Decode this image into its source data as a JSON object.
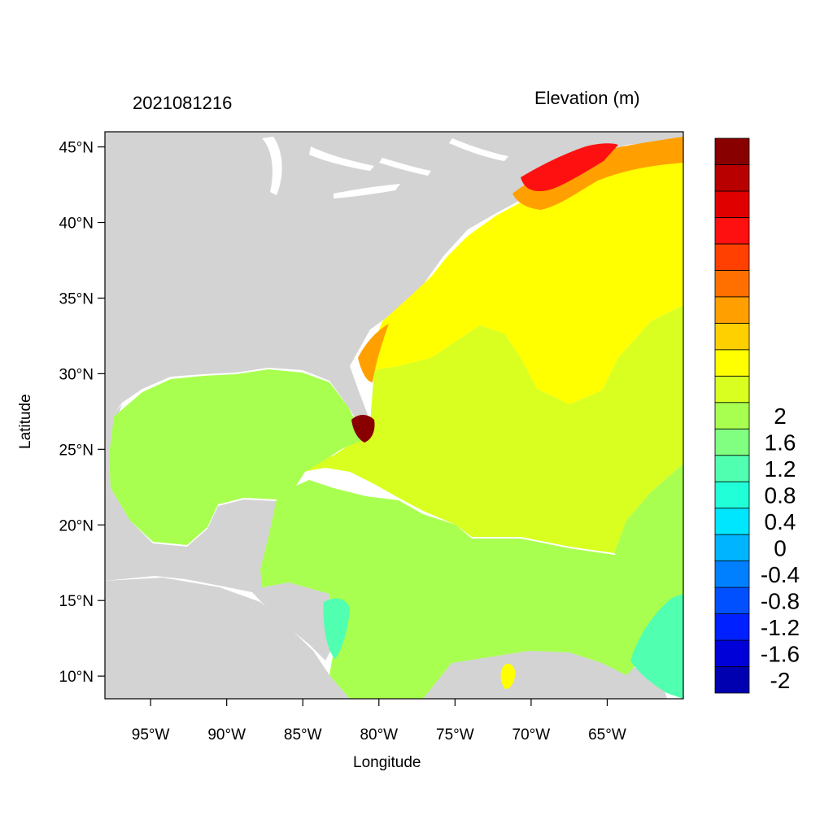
{
  "title_left": "2021081216",
  "title_right": "Elevation (m)",
  "x_axis_label": "Longitude",
  "y_axis_label": "Latitude",
  "x_ticks": [
    {
      "lon": -95,
      "label": "95°W"
    },
    {
      "lon": -90,
      "label": "90°W"
    },
    {
      "lon": -85,
      "label": "85°W"
    },
    {
      "lon": -80,
      "label": "80°W"
    },
    {
      "lon": -75,
      "label": "75°W"
    },
    {
      "lon": -70,
      "label": "70°W"
    },
    {
      "lon": -65,
      "label": "65°W"
    }
  ],
  "y_ticks": [
    {
      "lat": 45,
      "label": "45°N"
    },
    {
      "lat": 40,
      "label": "40°N"
    },
    {
      "lat": 35,
      "label": "35°N"
    },
    {
      "lat": 30,
      "label": "30°N"
    },
    {
      "lat": 25,
      "label": "25°N"
    },
    {
      "lat": 20,
      "label": "20°N"
    },
    {
      "lat": 15,
      "label": "15°N"
    },
    {
      "lat": 10,
      "label": "10°N"
    }
  ],
  "colorbar": {
    "colors": [
      "#0000b0",
      "#0000d8",
      "#0020ff",
      "#0050ff",
      "#0080ff",
      "#00b4ff",
      "#00e6ff",
      "#20ffd8",
      "#50ffb0",
      "#80ff80",
      "#a8ff50",
      "#d8ff20",
      "#ffff00",
      "#ffd000",
      "#ffa000",
      "#ff7000",
      "#ff4000",
      "#ff1010",
      "#e00000",
      "#b80000",
      "#880000"
    ],
    "labels": [
      {
        "level": -2,
        "text": "-2"
      },
      {
        "level": -1.6,
        "text": "-1.6"
      },
      {
        "level": -1.2,
        "text": "-1.2"
      },
      {
        "level": -0.8,
        "text": "-0.8"
      },
      {
        "level": -0.4,
        "text": "-0.4"
      },
      {
        "level": 0,
        "text": "0"
      },
      {
        "level": 0.4,
        "text": "0.4"
      },
      {
        "level": 0.8,
        "text": "0.8"
      },
      {
        "level": 1.2,
        "text": "1.2"
      },
      {
        "level": 1.6,
        "text": "1.6"
      },
      {
        "level": 2,
        "text": "2"
      }
    ]
  },
  "map": {
    "lon_range": [
      -98,
      -60
    ],
    "lat_range": [
      8.5,
      46
    ],
    "land_color": "#d3d3d3",
    "ocean_color": "#ffffff",
    "high_color": "#ffff00",
    "mid_color": "#d8ff20",
    "low_color": "#a8ff50",
    "northeast_color": "#ff1010",
    "extreme_color": "#880000",
    "negative_color": "#50ffb0"
  }
}
